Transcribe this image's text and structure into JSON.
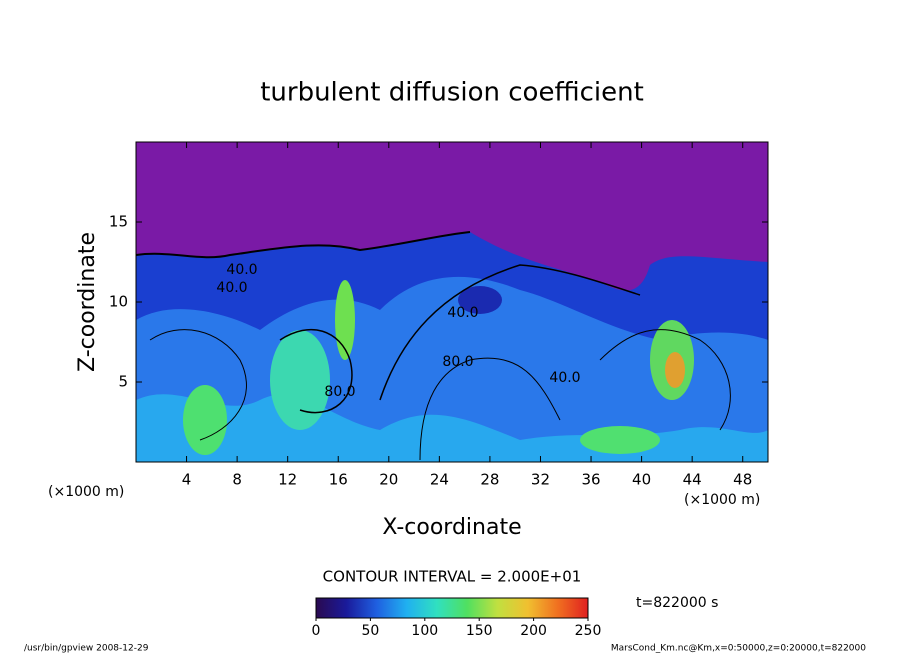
{
  "chart_data": {
    "type": "contour",
    "title": "turbulent diffusion coefficient",
    "x_label": "X-coordinate",
    "y_label": "Z-coordinate",
    "x_unit_label": "(×1000 m)",
    "xlim": [
      0,
      50
    ],
    "xticks": [
      4,
      8,
      12,
      16,
      20,
      24,
      28,
      32,
      36,
      40,
      44,
      48
    ],
    "ylim": [
      0,
      20
    ],
    "yticks": [
      5,
      10,
      15
    ],
    "contour_labels": [
      "40.0",
      "40.0",
      "40.0",
      "40.0",
      "80.0",
      "80.0"
    ],
    "contour_interval_label": "CONTOUR INTERVAL = 2.000E+01",
    "time_label": "t=822000 s",
    "colorbar": {
      "lim": [
        0,
        250
      ],
      "ticks": [
        0,
        50,
        100,
        150,
        200,
        250
      ],
      "colors": [
        "#2a0a50",
        "#1a1a9a",
        "#1f5fe0",
        "#20b0f0",
        "#30e0c0",
        "#50e060",
        "#c0e040",
        "#f0c030",
        "#f07020",
        "#e02020"
      ]
    },
    "footer_left": "/usr/bin/gpview  2008-12-29",
    "footer_right": "MarsCond_Km.nc@Km,x=0:50000,z=0:20000,t=822000"
  }
}
